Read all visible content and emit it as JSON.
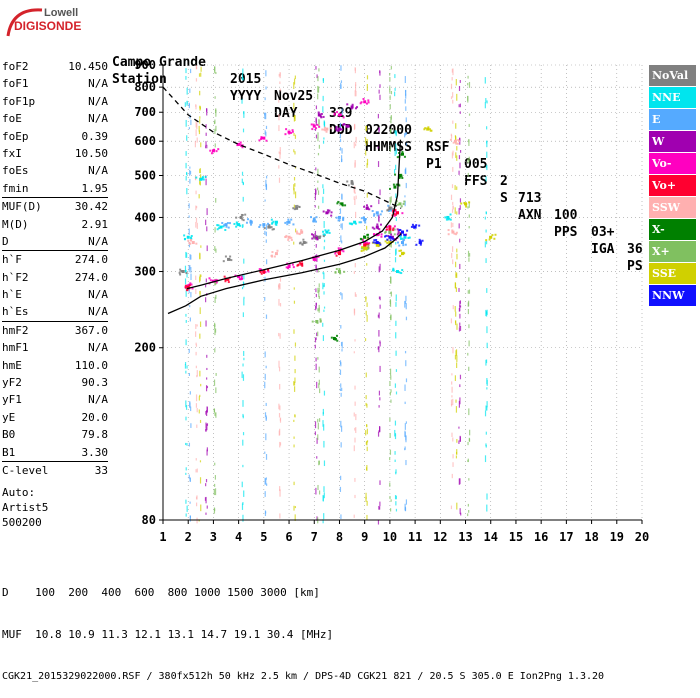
{
  "logo": {
    "top": "Lowell",
    "bottom": "DIGISONDE"
  },
  "header": {
    "row1": [
      "Station",
      "YYYY",
      "DAY",
      "DDD",
      "HHMMSS",
      "P1",
      "FFS",
      "S",
      "AXN",
      "PPS",
      "IGA",
      "PS"
    ],
    "row2": [
      "Campo Grande",
      "2015",
      "Nov25",
      "329",
      "022000",
      "RSF",
      "005",
      "2",
      "713",
      "100",
      "03+",
      "36"
    ]
  },
  "params": {
    "group1": [
      {
        "k": "foF2",
        "v": "10.450"
      },
      {
        "k": "foF1",
        "v": "N/A"
      },
      {
        "k": "foF1p",
        "v": "N/A"
      },
      {
        "k": "foE",
        "v": "N/A"
      },
      {
        "k": "foEp",
        "v": "0.39"
      },
      {
        "k": "fxI",
        "v": "10.50"
      },
      {
        "k": "foEs",
        "v": "N/A"
      },
      {
        "k": "fmin",
        "v": "1.95"
      }
    ],
    "group2": [
      {
        "k": "MUF(D)",
        "v": "30.42"
      },
      {
        "k": "M(D)",
        "v": "2.91"
      },
      {
        "k": "D",
        "v": "N/A"
      }
    ],
    "group3": [
      {
        "k": "h`F",
        "v": "274.0"
      },
      {
        "k": "h`F2",
        "v": "274.0"
      },
      {
        "k": "h`E",
        "v": "N/A"
      },
      {
        "k": "h`Es",
        "v": "N/A"
      }
    ],
    "group4": [
      {
        "k": "hmF2",
        "v": "367.0"
      },
      {
        "k": "hmF1",
        "v": "N/A"
      },
      {
        "k": "hmE",
        "v": "110.0"
      },
      {
        "k": "yF2",
        "v": "90.3"
      },
      {
        "k": "yF1",
        "v": "N/A"
      },
      {
        "k": "yE",
        "v": "20.0"
      },
      {
        "k": "B0",
        "v": "79.8"
      },
      {
        "k": "B1",
        "v": "3.30"
      }
    ],
    "group5": [
      {
        "k": "C-level",
        "v": "33"
      }
    ],
    "auto": "Auto:\nArtist5\n500200"
  },
  "legend": [
    {
      "label": "NoVal",
      "color": "#808080"
    },
    {
      "label": "NNE",
      "color": "#00e5ee"
    },
    {
      "label": "E",
      "color": "#55aaff"
    },
    {
      "label": "W",
      "color": "#a000b0"
    },
    {
      "label": "Vo-",
      "color": "#ff00c0"
    },
    {
      "label": "Vo+",
      "color": "#ff0030"
    },
    {
      "label": "SSW",
      "color": "#ffb0b0"
    },
    {
      "label": "X-",
      "color": "#008000"
    },
    {
      "label": "X+",
      "color": "#80c060"
    },
    {
      "label": "SSE",
      "color": "#d0d000"
    },
    {
      "label": "NNW",
      "color": "#1010ff"
    }
  ],
  "footer": {
    "line1": "D    100  200  400  600  800 1000 1500 3000 [km]",
    "line2": "MUF  10.8 10.9 11.3 12.1 13.1 14.7 19.1 30.4 [MHz]",
    "line3": "CGK21_2015329022000.RSF / 380fx512h 50 kHz 2.5 km / DPS-4D CGK21 821 / 20.5 S 305.0 E Ion2Png 1.3.20"
  },
  "chart_data": {
    "type": "scatter",
    "xlabel": "",
    "ylabel": "",
    "xlim": [
      1,
      20
    ],
    "ylim": [
      80,
      900
    ],
    "x_scale": "linear",
    "y_scale": "log",
    "x_ticks": [
      "1",
      "2",
      "3",
      "4",
      "5",
      "6",
      "7",
      "8",
      "9",
      "10",
      "11",
      "12",
      "13",
      "14",
      "15",
      "16",
      "17",
      "18",
      "19",
      "20"
    ],
    "y_ticks": [
      {
        "value": 80,
        "label": "80"
      },
      {
        "value": 200,
        "label": "200"
      },
      {
        "value": 300,
        "label": "300"
      },
      {
        "value": 400,
        "label": "400"
      },
      {
        "value": 500,
        "label": "500"
      },
      {
        "value": 600,
        "label": "600"
      },
      {
        "value": 700,
        "label": "700"
      },
      {
        "value": 800,
        "label": "800"
      },
      {
        "value": 900,
        "label": "900"
      }
    ],
    "grid": "dotted",
    "series": [
      {
        "name": "NNE",
        "color": "#00e5ee",
        "x": [
          2.0,
          2.5,
          3.3,
          4.0,
          5.5,
          7.5,
          8.6,
          10.3,
          10.6,
          12.3
        ],
        "y": [
          360,
          490,
          380,
          385,
          390,
          370,
          390,
          300,
          360,
          400
        ]
      },
      {
        "name": "E",
        "color": "#55aaff",
        "x": [
          3.5,
          4.5,
          5.0,
          6.0,
          7.0,
          8.0,
          9.0,
          9.5,
          10.0,
          10.5
        ],
        "y": [
          385,
          390,
          385,
          390,
          395,
          400,
          395,
          410,
          420,
          350
        ]
      },
      {
        "name": "W",
        "color": "#a000b0",
        "x": [
          7.1,
          7.2,
          8.0,
          8.3,
          9.1,
          9.5,
          10.1,
          10.5,
          8.5,
          7.5
        ],
        "y": [
          360,
          690,
          640,
          650,
          420,
          380,
          360,
          370,
          720,
          410
        ]
      },
      {
        "name": "Vo-",
        "color": "#ff00c0",
        "x": [
          2.0,
          3.0,
          4.0,
          5.0,
          6.0,
          7.0,
          8.0,
          9.0,
          9.5,
          10.0,
          10.3,
          3.0,
          4.0,
          5.0,
          6.0,
          7.0,
          8.0,
          9.0
        ],
        "y": [
          278,
          285,
          292,
          300,
          308,
          320,
          335,
          350,
          365,
          380,
          410,
          570,
          590,
          610,
          630,
          650,
          690,
          740
        ]
      },
      {
        "name": "Vo+",
        "color": "#ff0030",
        "x": [
          2.0,
          3.5,
          5.0,
          6.5,
          8.0,
          9.0,
          10.0,
          10.3
        ],
        "y": [
          276,
          288,
          300,
          312,
          330,
          345,
          375,
          410
        ]
      },
      {
        "name": "SSW",
        "color": "#ffb0b0",
        "x": [
          2.2,
          5.5,
          6.0,
          6.5,
          7.5,
          12.5,
          12.6
        ],
        "y": [
          350,
          330,
          360,
          370,
          640,
          370,
          600
        ]
      },
      {
        "name": "X-",
        "color": "#008000",
        "x": [
          7.8,
          8.1,
          9.0,
          10.2,
          10.4,
          10.5
        ],
        "y": [
          210,
          430,
          360,
          470,
          500,
          560
        ]
      },
      {
        "name": "X+",
        "color": "#80c060",
        "x": [
          7.1,
          8.0,
          9.0,
          10.0,
          10.4
        ],
        "y": [
          230,
          300,
          340,
          370,
          430
        ]
      },
      {
        "name": "SSE",
        "color": "#d0d000",
        "x": [
          9.0,
          9.5,
          10.0,
          10.5,
          11.5,
          13.0,
          14.0
        ],
        "y": [
          340,
          345,
          350,
          330,
          640,
          430,
          360
        ]
      },
      {
        "name": "NNW",
        "color": "#1010ff",
        "x": [
          9.5,
          10.0,
          10.5,
          11.0,
          11.2
        ],
        "y": [
          350,
          360,
          370,
          380,
          350
        ]
      },
      {
        "name": "NoVal",
        "color": "#808080",
        "x": [
          1.8,
          3.6,
          4.1,
          5.2,
          6.3,
          6.6,
          7.2,
          8.5,
          10.0
        ],
        "y": [
          300,
          320,
          400,
          380,
          420,
          350,
          360,
          480,
          420
        ]
      }
    ],
    "curves": [
      {
        "name": "virtual-height trace",
        "color": "#000000",
        "style": "solid",
        "x": [
          1.95,
          2.5,
          3.5,
          5.0,
          6.5,
          8.0,
          9.0,
          9.7,
          10.1,
          10.3,
          10.42
        ],
        "y": [
          274,
          279,
          289,
          303,
          318,
          336,
          352,
          372,
          400,
          450,
          605
        ]
      },
      {
        "name": "true-height profile",
        "color": "#000000",
        "style": "solid",
        "x": [
          1.2,
          1.9,
          2.5,
          3.5,
          5.0,
          6.5,
          8.0,
          9.0,
          9.8,
          10.2,
          10.45
        ],
        "y": [
          240,
          250,
          263,
          274,
          287,
          298,
          312,
          325,
          340,
          355,
          367
        ]
      },
      {
        "name": "MUF transmission curve",
        "color": "#000000",
        "style": "dashed",
        "x": [
          1.0,
          2.0,
          3.0,
          4.0,
          5.0,
          6.0,
          7.0,
          8.0,
          9.0,
          10.45
        ],
        "y": [
          800,
          690,
          630,
          590,
          560,
          530,
          505,
          480,
          460,
          420
        ]
      }
    ]
  }
}
